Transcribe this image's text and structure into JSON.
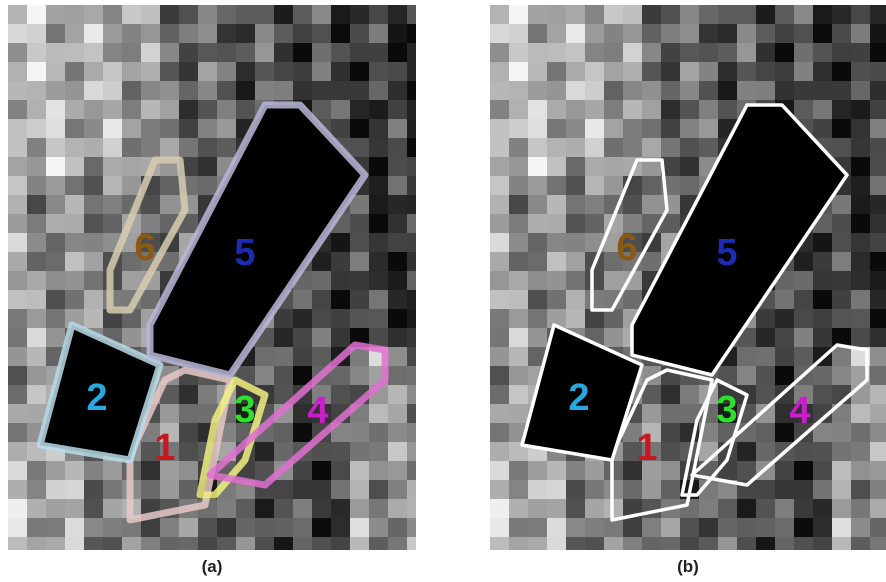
{
  "panels": [
    {
      "caption": "(a)",
      "regions": [
        "1",
        "2",
        "3",
        "4",
        "5",
        "6"
      ]
    },
    {
      "caption": "(b)",
      "regions": [
        "1",
        "2",
        "3",
        "4",
        "5",
        "6"
      ]
    }
  ]
}
